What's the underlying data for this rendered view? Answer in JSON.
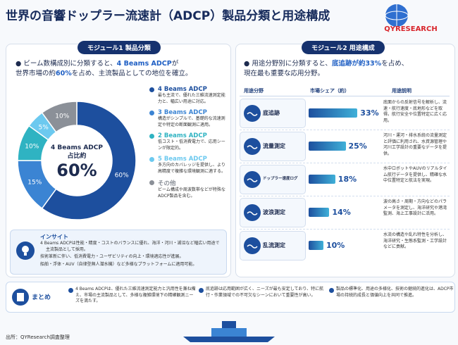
{
  "header": {
    "title": "世界の音響ドップラー流速計（ADCP）製品分類と用途構成",
    "logo": "QYRESEARCH"
  },
  "module1": {
    "heading": "モジュール1 製品分類",
    "intro": [
      "ビーム数構成別に分類すると、",
      "4 Beams ADCP",
      "が",
      "世界市場の約",
      "60%",
      "を占め、主流製品としての地位を確立。"
    ],
    "center": [
      "4 Beams ADCP",
      "占比約",
      "60%"
    ],
    "segments": [
      {
        "name": "4 Beams ADCP",
        "value": 60,
        "label": "60%",
        "color": "#1d4f9e",
        "desc": "最も主流で、優れた三維流速測定能力と、幅広い用途に対応。"
      },
      {
        "name": "3 Beams ADCP",
        "value": 15,
        "label": "15%",
        "color": "#3b84d3",
        "desc": "構造がシンプルで、基礎的な流速測定や特定の断面観測に適用。"
      },
      {
        "name": "2 Beams ADCP",
        "value": 10,
        "label": "10%",
        "color": "#2fb3c2",
        "desc": "低コスト・低消費電力で、応用シーンが限定的。"
      },
      {
        "name": "5 Beams ADCP",
        "value": 5,
        "label": "5%",
        "color": "#6cc9ef",
        "desc": "多方向のカバレッジを提供し、より高精度で複雑な環境観測に適する。"
      },
      {
        "name": "その他",
        "value": 10,
        "label": "10%",
        "color": "#8b9098",
        "desc": "ビーム構成や周波数帯などが特殊なADCP製品を含む。"
      }
    ],
    "insight": {
      "title": "インサイト",
      "items": [
        "4 Beams ADCPは性能・精度・コストのバランスに優れ、海洋・河川・湖沼など幅広い用途で主流製品として採用。",
        "技術革新に伴い、低消費電力・ユーザビリティの向上・環境適応性が進展。",
        "船舶・浮体・AUV（自律型無人潜水機）など多様なプラットフォームに適用可能。"
      ]
    }
  },
  "module2": {
    "heading": "モジュール2 用途構成",
    "intro": [
      "用途分野別に分類すると、",
      "底追跡が約33%",
      "を占め、",
      "現在最も重要な応用分野。"
    ],
    "columns": [
      "用途分野",
      "市場シェア（約）",
      "用途説明"
    ],
    "rows": [
      {
        "name": "底追跡",
        "value": 33,
        "value_label": "33%",
        "desc": "底面からの反射信号を解析し、流速・航行速度・底地形などを取得。航行安全や位置特定に広く応用。"
      },
      {
        "name": "流量測定",
        "value": 25,
        "value_label": "25%",
        "desc": "河川・運河・排水系統の流量測定と評価に利用され、水資源管理や河川工学設計の重要なデータを提供。"
      },
      {
        "name": "ドップラー速度ログ",
        "value": 18,
        "value_label": "18%",
        "desc": "水中ロボットやAUVのリアルタイム航行データを提供し、精確な水中位置特定と航法を実現。"
      },
      {
        "name": "波浪測定",
        "value": 14,
        "value_label": "14%",
        "desc": "波の高さ・周期・方向などのパラメータを測定し、海洋研究や港湾監測、海上工事設計に活用。"
      },
      {
        "name": "乱流測定",
        "value": 10,
        "value_label": "10%",
        "desc": "水流の構造や乱れ特性を分析し、海洋研究・生態系監測・工学設計などに貢献。"
      }
    ]
  },
  "summary": {
    "title": "まとめ",
    "items": [
      "4 Beams ADCPは、優れた三維流速測定能力と汎用性を兼ね備え、市場の主流製品として、多様な複雑環境下の精確観測ニーズを満たす。",
      "底追跡は応用範囲が広く、ニーズが最も安定しており、特に航行・作業領域での不可欠なシーンにおいて重要性が高い。",
      "製品の標準化、用途の多様化、技術の継続的進化は、ADCP市場の持続的成長と価値向上を共同で推進。"
    ]
  },
  "source": "出所：QYResearch調査整理"
}
